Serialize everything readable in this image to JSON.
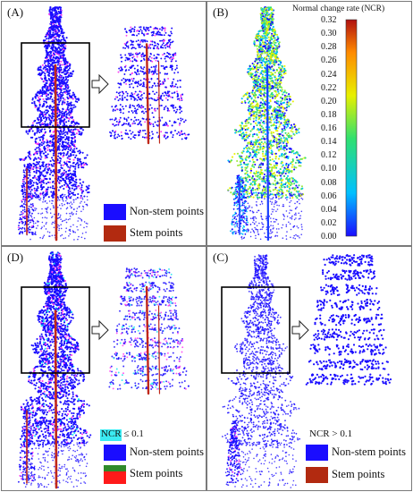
{
  "panels": {
    "A": {
      "label": "(A)",
      "legend": [
        {
          "text": "Non-stem points",
          "color": "#1a0dff"
        },
        {
          "text": "Stem points",
          "color": "#b22a10"
        }
      ]
    },
    "B": {
      "label": "(B)",
      "colorbar": {
        "title": "Normal change rate (NCR)",
        "ticks": [
          "0.32",
          "0.30",
          "0.28",
          "0.26",
          "0.24",
          "0.22",
          "0.20",
          "0.18",
          "0.16",
          "0.14",
          "0.12",
          "0.10",
          "0.08",
          "0.06",
          "0.04",
          "0.02",
          "0.00"
        ],
        "colors": [
          "#1a0dff",
          "#00c0ff",
          "#30e070",
          "#e8f000",
          "#ff8a00",
          "#b01010"
        ]
      }
    },
    "D": {
      "label": "(D)",
      "condition": "NCR ≤ 0.1",
      "legend": [
        {
          "text": "Non-stem points",
          "color": "#1a0dff"
        },
        {
          "text": "Stem points",
          "color": "#c0281a"
        }
      ]
    },
    "C": {
      "label": "(C)",
      "condition": "NCR > 0.1",
      "legend": [
        {
          "text": "Non-stem points",
          "color": "#1a0dff"
        },
        {
          "text": "Stem points",
          "color": "#b22a10"
        }
      ]
    }
  },
  "colors": {
    "nonstem": "#1a0dff",
    "stem": "#c0281a",
    "noise_magenta": "#ff3cf0",
    "noise_cyan": "#19e6f0"
  }
}
